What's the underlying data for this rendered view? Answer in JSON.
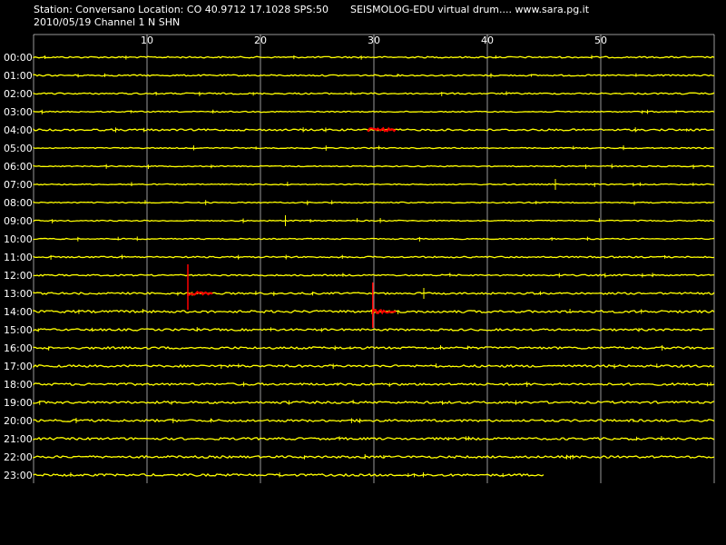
{
  "header": {
    "station_line": "Station: Conversano Location: CO 40.9712 17.1028 SPS:50",
    "app_line": "SEISMOLOG-EDU virtual drum.... www.sara.pg.it",
    "date_channel_line": "2010/05/19  Channel 1 N SHN"
  },
  "colors": {
    "background": "#000000",
    "trace": "#ffff00",
    "event": "#ff0000",
    "grid": "#ffffff",
    "text": "#ffffff"
  },
  "chart_data": {
    "type": "line",
    "title": "",
    "xlabel": "",
    "ylabel": "",
    "xlim": [
      0,
      60
    ],
    "x_ticks": [
      10,
      20,
      30,
      40,
      50
    ],
    "grid": true,
    "hours": [
      "00:00",
      "01:00",
      "02:00",
      "03:00",
      "04:00",
      "05:00",
      "06:00",
      "07:00",
      "08:00",
      "09:00",
      "10:00",
      "11:00",
      "12:00",
      "13:00",
      "14:00",
      "15:00",
      "16:00",
      "17:00",
      "18:00",
      "19:00",
      "20:00",
      "21:00",
      "22:00",
      "23:00"
    ],
    "noise_level": [
      0.8,
      0.8,
      0.8,
      0.6,
      1.0,
      0.6,
      0.6,
      0.6,
      0.6,
      0.6,
      0.6,
      0.8,
      0.8,
      1.0,
      1.3,
      1.1,
      1.2,
      1.2,
      1.2,
      1.2,
      1.2,
      1.2,
      1.2,
      1.2
    ],
    "trace_end_minute": {
      "23:00": 45.0
    },
    "events": [
      {
        "hour": "04:00",
        "start_minute": 29.5,
        "end_minute": 32.0,
        "kind": "burst"
      },
      {
        "hour": "13:00",
        "start_minute": 13.6,
        "end_minute": 15.8,
        "kind": "spike"
      },
      {
        "hour": "14:00",
        "start_minute": 29.9,
        "end_minute": 32.0,
        "kind": "spike"
      }
    ],
    "spikes": [
      {
        "hour": "07:00",
        "minute": 46.0
      },
      {
        "hour": "09:00",
        "minute": 22.2
      },
      {
        "hour": "13:00",
        "minute": 34.4
      }
    ]
  }
}
